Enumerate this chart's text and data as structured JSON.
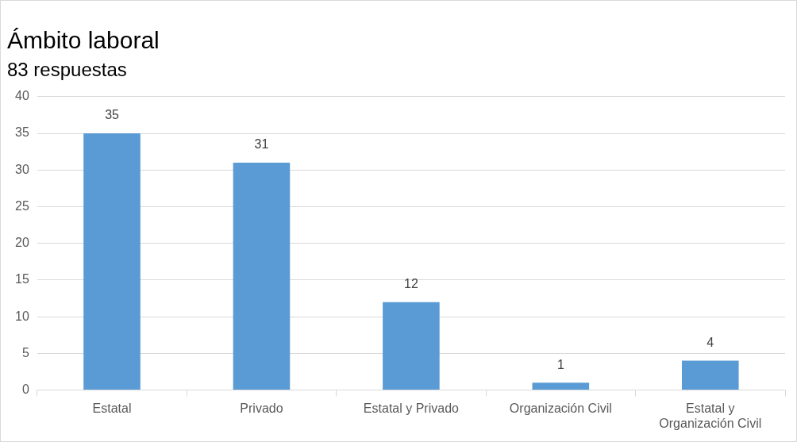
{
  "chart_data": {
    "type": "bar",
    "title": "Ámbito laboral",
    "subtitle": "83 respuestas",
    "categories": [
      "Estatal",
      "Privado",
      "Estatal y Privado",
      "Organización Civil",
      "Estatal y Organización Civil"
    ],
    "values": [
      35,
      31,
      12,
      1,
      4
    ],
    "color": "#5b9bd5",
    "ylim": [
      0,
      40
    ],
    "yticks": [
      0,
      5,
      10,
      15,
      20,
      25,
      30,
      35,
      40
    ],
    "grid": "y",
    "legend": false,
    "data_labels": true
  }
}
